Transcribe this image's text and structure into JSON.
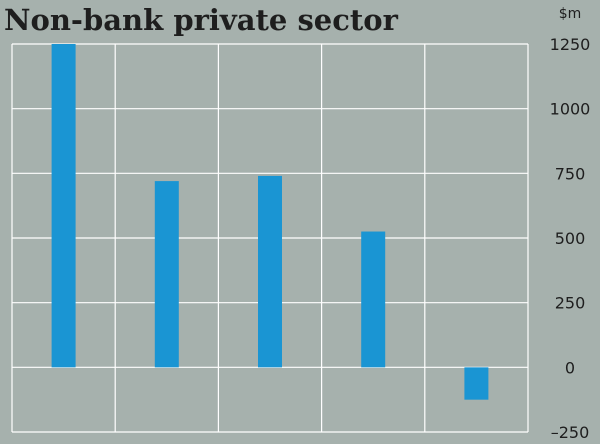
{
  "chart_data": {
    "type": "bar",
    "title": "Non-bank private sector",
    "unit": "$m",
    "categories": [
      "",
      "",
      "",
      "",
      ""
    ],
    "values": [
      1250,
      720,
      740,
      525,
      -125
    ],
    "ylim": [
      -250,
      1250
    ],
    "yticks": [
      1250,
      1000,
      750,
      500,
      250,
      0,
      -250
    ],
    "ytick_labels": [
      "1250",
      "1000",
      "750",
      "500",
      "250",
      "0",
      "–250"
    ],
    "grid": true,
    "colors": {
      "background": "#a6b1ad",
      "bar": "#1a95d3",
      "grid": "#ffffff",
      "text": "#1e1e1e"
    }
  }
}
